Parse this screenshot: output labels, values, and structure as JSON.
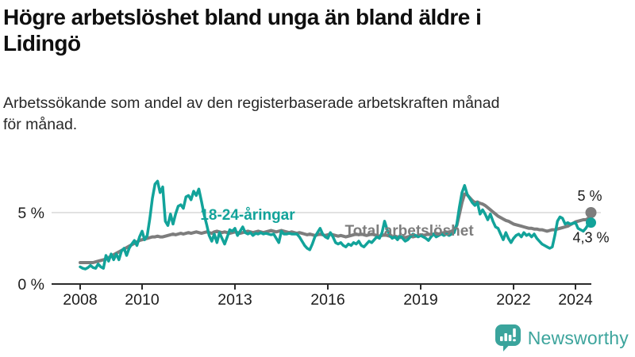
{
  "chart_data": {
    "type": "line",
    "title_lines": [
      "Högre arbetslöshet bland unga än bland äldre i",
      "Lidingö"
    ],
    "subtitle_lines": [
      "Arbetssökande som andel av den registerbaserade arbetskraften månad",
      "för månad."
    ],
    "x_ticks": [
      {
        "year": 2008,
        "label": "2008"
      },
      {
        "year": 2010,
        "label": "2010"
      },
      {
        "year": 2013,
        "label": "2013"
      },
      {
        "year": 2016,
        "label": "2016"
      },
      {
        "year": 2019,
        "label": "2019"
      },
      {
        "year": 2022,
        "label": "2022"
      },
      {
        "year": 2024,
        "label": "2024"
      }
    ],
    "y_axis": {
      "labels": [
        {
          "value": 0,
          "text": "0 %"
        },
        {
          "value": 5,
          "text": "5 %"
        }
      ],
      "gridlines": [
        5
      ]
    },
    "xlim": [
      2008,
      2024.58
    ],
    "ylim": [
      0,
      7.8
    ],
    "grid_on": true,
    "legend_position": "inline-labels",
    "series": [
      {
        "id": "total",
        "name": "Total arbetslöshet",
        "color": "#7d7d7d",
        "line_width": 4,
        "start_year": 2008.0,
        "step_months": 1,
        "end_label": "5 %",
        "end_value": 5.0,
        "label_anchor": {
          "year": 2016.55,
          "pct": 3.4
        },
        "values": [
          1.5,
          1.5,
          1.5,
          1.5,
          1.5,
          1.5,
          1.55,
          1.6,
          1.65,
          1.7,
          1.75,
          1.85,
          1.95,
          2.05,
          2.15,
          2.25,
          2.35,
          2.45,
          2.55,
          2.65,
          2.75,
          2.85,
          2.95,
          3.05,
          3.1,
          3.15,
          3.2,
          3.25,
          3.3,
          3.3,
          3.35,
          3.3,
          3.3,
          3.35,
          3.4,
          3.45,
          3.5,
          3.45,
          3.5,
          3.55,
          3.5,
          3.55,
          3.6,
          3.55,
          3.6,
          3.65,
          3.6,
          3.55,
          3.6,
          3.65,
          3.6,
          3.55,
          3.65,
          3.7,
          3.65,
          3.6,
          3.65,
          3.6,
          3.55,
          3.6,
          3.65,
          3.6,
          3.55,
          3.6,
          3.65,
          3.7,
          3.65,
          3.6,
          3.65,
          3.7,
          3.65,
          3.6,
          3.65,
          3.7,
          3.75,
          3.7,
          3.65,
          3.7,
          3.75,
          3.7,
          3.65,
          3.6,
          3.65,
          3.6,
          3.55,
          3.6,
          3.55,
          3.5,
          3.45,
          3.5,
          3.45,
          3.4,
          3.45,
          3.5,
          3.45,
          3.4,
          3.45,
          3.5,
          3.45,
          3.4,
          3.35,
          3.4,
          3.35,
          3.3,
          3.35,
          3.4,
          3.45,
          3.5,
          3.45,
          3.5,
          3.45,
          3.4,
          3.45,
          3.5,
          3.45,
          3.4,
          3.35,
          3.4,
          3.45,
          3.4,
          3.35,
          3.3,
          3.35,
          3.3,
          3.25,
          3.3,
          3.25,
          3.3,
          3.35,
          3.3,
          3.35,
          3.4,
          3.45,
          3.4,
          3.45,
          3.5,
          3.45,
          3.5,
          3.55,
          3.5,
          3.55,
          3.6,
          3.6,
          3.65,
          3.7,
          3.8,
          4.1,
          4.9,
          5.7,
          6.3,
          6.25,
          6.05,
          5.85,
          5.7,
          5.75,
          5.65,
          5.6,
          5.5,
          5.35,
          5.2,
          5.05,
          4.9,
          4.75,
          4.65,
          4.55,
          4.45,
          4.4,
          4.3,
          4.2,
          4.15,
          4.1,
          4.05,
          4.0,
          3.95,
          3.9,
          3.9,
          3.85,
          3.85,
          3.8,
          3.8,
          3.75,
          3.7,
          3.75,
          3.8,
          3.8,
          3.85,
          3.9,
          3.95,
          4.0,
          4.05,
          4.15,
          4.25,
          4.35,
          4.4,
          4.45,
          4.5,
          4.5,
          4.6,
          5.0
        ]
      },
      {
        "id": "youth",
        "name": "18-24-åringar",
        "color": "#12a39a",
        "line_width": 3.5,
        "start_year": 2008.0,
        "step_months": 1,
        "end_label": "4,3 %",
        "end_value": 4.3,
        "label_anchor": {
          "year": 2011.88,
          "pct": 4.5
        },
        "values": [
          1.2,
          1.1,
          1.05,
          1.15,
          1.3,
          1.15,
          1.1,
          1.4,
          1.2,
          1.1,
          2.0,
          1.6,
          2.1,
          1.7,
          2.1,
          1.7,
          2.3,
          2.5,
          2.0,
          2.5,
          2.8,
          3.05,
          2.7,
          3.3,
          3.7,
          3.1,
          3.4,
          4.6,
          6.0,
          7.0,
          7.2,
          6.4,
          6.8,
          4.4,
          4.1,
          4.9,
          4.2,
          4.9,
          5.45,
          5.55,
          5.3,
          6.1,
          6.2,
          5.9,
          6.5,
          6.2,
          6.65,
          5.8,
          4.9,
          4.2,
          3.4,
          3.0,
          3.5,
          2.9,
          3.6,
          3.2,
          2.8,
          3.3,
          3.8,
          3.7,
          3.9,
          3.4,
          3.7,
          4.0,
          3.6,
          3.5,
          3.6,
          3.4,
          3.55,
          3.5,
          3.6,
          3.5,
          3.55,
          3.5,
          3.45,
          3.5,
          3.2,
          2.9,
          3.7,
          3.5,
          3.5,
          3.55,
          3.5,
          3.5,
          3.5,
          3.3,
          3.0,
          2.7,
          2.5,
          2.4,
          2.8,
          3.3,
          3.6,
          3.9,
          3.5,
          3.3,
          3.2,
          3.6,
          3.3,
          2.9,
          2.8,
          2.9,
          2.7,
          2.6,
          2.8,
          2.7,
          2.9,
          2.8,
          3.0,
          2.7,
          2.6,
          2.8,
          3.0,
          2.9,
          3.1,
          3.3,
          3.2,
          3.6,
          4.4,
          3.8,
          3.4,
          3.2,
          3.3,
          3.1,
          3.4,
          3.2,
          3.0,
          3.1,
          3.3,
          3.5,
          3.4,
          3.3,
          3.4,
          3.3,
          3.2,
          3.05,
          3.3,
          3.5,
          3.3,
          3.4,
          3.5,
          3.4,
          3.5,
          3.4,
          3.5,
          3.6,
          4.2,
          5.4,
          6.4,
          6.9,
          6.3,
          6.0,
          5.7,
          5.5,
          5.7,
          4.9,
          5.2,
          4.9,
          4.5,
          4.9,
          4.4,
          4.0,
          3.9,
          3.5,
          3.1,
          3.6,
          3.2,
          2.9,
          3.2,
          3.4,
          3.5,
          3.3,
          3.6,
          3.4,
          3.5,
          3.3,
          3.5,
          3.2,
          3.0,
          2.8,
          2.7,
          2.6,
          2.5,
          2.6,
          3.4,
          4.4,
          4.7,
          4.6,
          4.2,
          4.3,
          4.2,
          4.25,
          4.3,
          3.9,
          3.8,
          3.7,
          3.9,
          4.2,
          4.3
        ]
      }
    ]
  },
  "branding": {
    "wordmark": "Newsworthy",
    "logo_color": "#3aa49c"
  }
}
